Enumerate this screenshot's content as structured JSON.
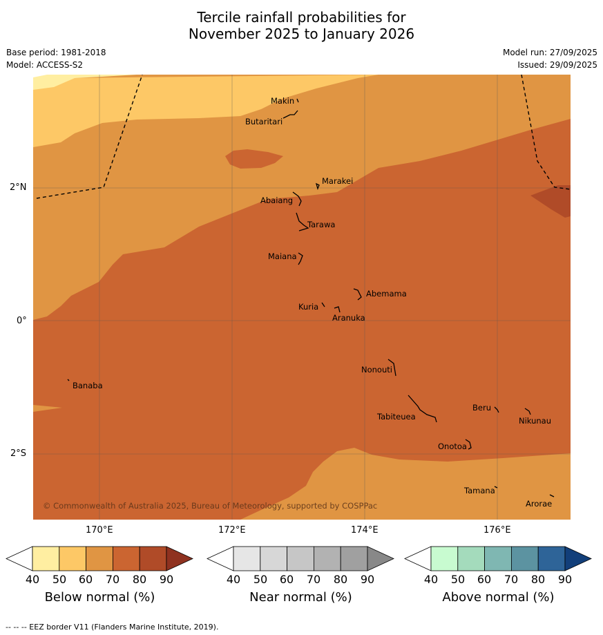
{
  "title": {
    "line1": "Tercile rainfall probabilities for",
    "line2": "November 2025 to January 2026"
  },
  "meta": {
    "base_period": "Base period: 1981-2018",
    "model": "Model: ACCESS-S2",
    "model_run": "Model run: 27/09/2025",
    "issued": "Issued: 29/09/2025"
  },
  "map": {
    "lat_labels": [
      "2°N",
      "0°",
      "2°S"
    ],
    "lon_labels": [
      "170°E",
      "172°E",
      "174°E",
      "176°E"
    ],
    "places": {
      "makin": "Makin",
      "butaritari": "Butaritari",
      "marakei": "Marakei",
      "abaiang": "Abaiang",
      "tarawa": "Tarawa",
      "maiana": "Maiana",
      "abemama": "Abemama",
      "kuria": "Kuria",
      "aranuka": "Aranuka",
      "nonouti": "Nonouti",
      "banaba": "Banaba",
      "beru": "Beru",
      "nikunau": "Nikunau",
      "tabiteuea": "Tabiteuea",
      "onotoa": "Onotoa",
      "tamana": "Tamana",
      "arorae": "Arorae"
    },
    "copyright": "© Commonwealth of Australia 2025, Bureau of Meteorology, supported by COSPPac",
    "colors": {
      "below_40": "#ffffff",
      "below_50": "#ffeea1",
      "below_60": "#fdc866",
      "below_70": "#e09543",
      "below_80": "#cb6531",
      "below_90": "#b04b28",
      "below_ext": "#8f3220"
    }
  },
  "legends": {
    "below": {
      "title": "Below normal (%)",
      "ticks": [
        "40",
        "50",
        "60",
        "70",
        "80",
        "90"
      ],
      "colors": [
        "#ffffff",
        "#ffeea1",
        "#fdc866",
        "#e09543",
        "#cb6531",
        "#b04b28",
        "#8f3220"
      ]
    },
    "near": {
      "title": "Near normal (%)",
      "ticks": [
        "40",
        "50",
        "60",
        "70",
        "80",
        "90"
      ],
      "colors": [
        "#ffffff",
        "#e6e6e6",
        "#d7d7d7",
        "#c6c6c6",
        "#b2b2b2",
        "#a0a0a0",
        "#888888"
      ]
    },
    "above": {
      "title": "Above normal (%)",
      "ticks": [
        "40",
        "50",
        "60",
        "70",
        "80",
        "90"
      ],
      "colors": [
        "#ffffff",
        "#c8fbd0",
        "#a4dbbc",
        "#7fb7b2",
        "#5c93a1",
        "#2e6498",
        "#123f7a"
      ]
    }
  },
  "footer": {
    "eez_legend": "--  --  -- EEZ border V11 (Flanders Marine Institute, 2019)."
  }
}
